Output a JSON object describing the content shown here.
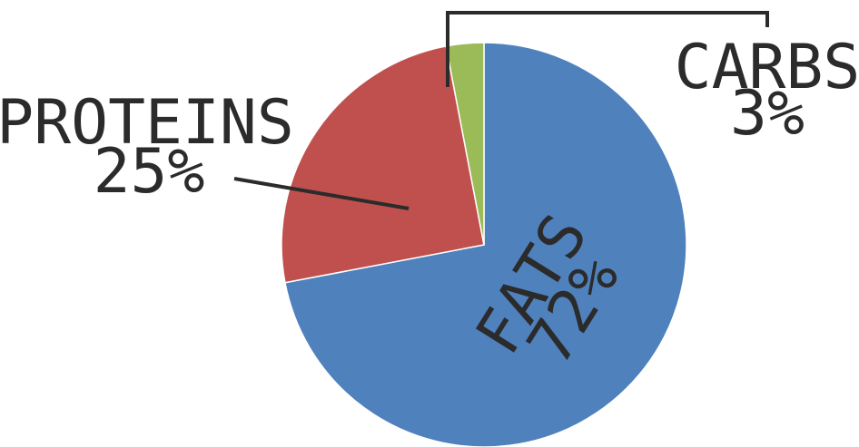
{
  "chart_data": {
    "type": "pie",
    "title": "",
    "slices": [
      {
        "label": "FATS",
        "value": 72,
        "value_label": "72%",
        "color": "#4f81bd"
      },
      {
        "label": "PROTEINS",
        "value": 25,
        "value_label": "25%",
        "color": "#c0504d"
      },
      {
        "label": "CARBS",
        "value": 3,
        "value_label": "3%",
        "color": "#9bbb59"
      }
    ],
    "legend": "none"
  }
}
